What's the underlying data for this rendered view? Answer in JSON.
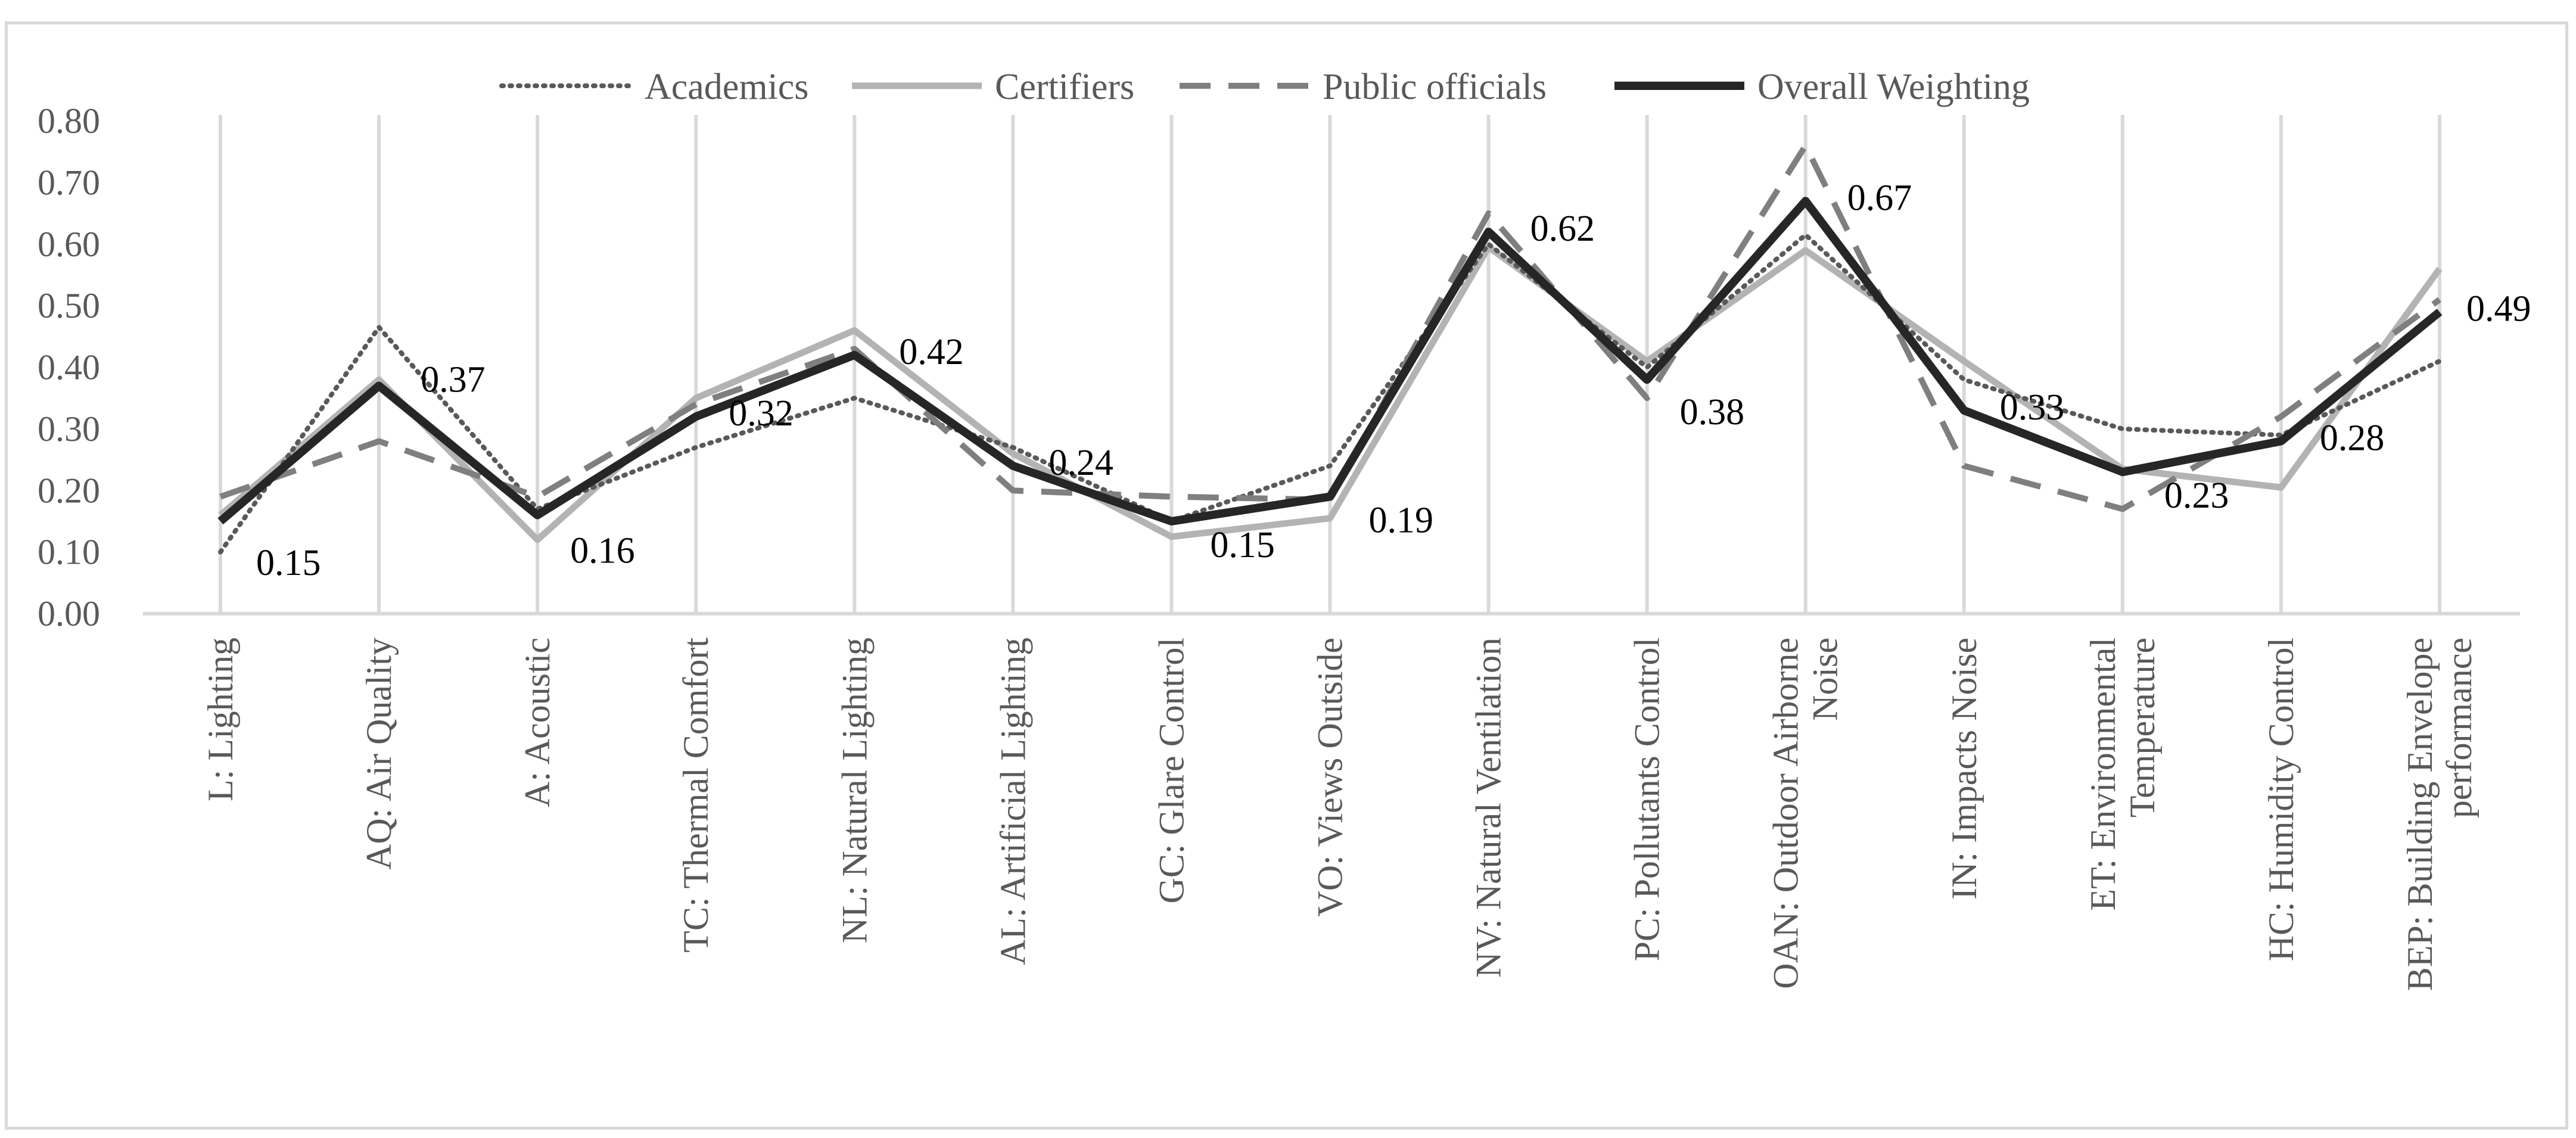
{
  "chart_data": {
    "type": "line",
    "title": "",
    "xlabel": "",
    "ylabel": "",
    "ylim": [
      0,
      0.8
    ],
    "yticks": [
      "0.00",
      "0.10",
      "0.20",
      "0.30",
      "0.40",
      "0.50",
      "0.60",
      "0.70",
      "0.80"
    ],
    "grid": "vertical",
    "legend_position": "top-center",
    "categories": [
      [
        "L: Lighting"
      ],
      [
        "AQ: Air Quality"
      ],
      [
        "A: Acoustic"
      ],
      [
        "TC: Thermal Comfort"
      ],
      [
        "NL: Natural Lighting"
      ],
      [
        "AL: Artificial Lighting"
      ],
      [
        "GC: Glare Control"
      ],
      [
        "VO: Views Outside"
      ],
      [
        "NV: Natural Ventilation"
      ],
      [
        "PC: Pollutants Control"
      ],
      [
        "OAN: Outdoor Airborne",
        "Noise"
      ],
      [
        "IN: Impacts Noise"
      ],
      [
        "ET: Environmental",
        "Temperature"
      ],
      [
        "HC: Humidity Control"
      ],
      [
        "BEP: Building Envelope",
        "performance"
      ]
    ],
    "series": [
      {
        "name": "Academics",
        "color": "#595959",
        "style": "dotted",
        "values": [
          0.1,
          0.465,
          0.17,
          0.27,
          0.35,
          0.27,
          0.15,
          0.24,
          0.6,
          0.4,
          0.615,
          0.38,
          0.3,
          0.29,
          0.41
        ]
      },
      {
        "name": "Certifiers",
        "color": "#b3b3b3",
        "style": "solid",
        "values": [
          0.16,
          0.38,
          0.12,
          0.35,
          0.46,
          0.26,
          0.125,
          0.155,
          0.595,
          0.41,
          0.59,
          0.41,
          0.235,
          0.205,
          0.56
        ]
      },
      {
        "name": "Public officials",
        "color": "#7f7f7f",
        "style": "dashed",
        "values": [
          0.19,
          0.28,
          0.19,
          0.34,
          0.43,
          0.2,
          0.19,
          0.185,
          0.65,
          0.35,
          0.76,
          0.24,
          0.17,
          0.32,
          0.51
        ]
      },
      {
        "name": "Overall Weighting",
        "color": "#262626",
        "style": "solid-bold",
        "values": [
          0.15,
          0.37,
          0.16,
          0.32,
          0.42,
          0.24,
          0.15,
          0.19,
          0.62,
          0.38,
          0.67,
          0.33,
          0.23,
          0.28,
          0.49
        ],
        "labels": [
          "0.15",
          "0.37",
          "0.16",
          "0.32",
          "0.42",
          "0.24",
          "0.15",
          "0.19",
          "0.62",
          "0.38",
          "0.67",
          "0.33",
          "0.23",
          "0.28",
          "0.49"
        ]
      }
    ]
  }
}
